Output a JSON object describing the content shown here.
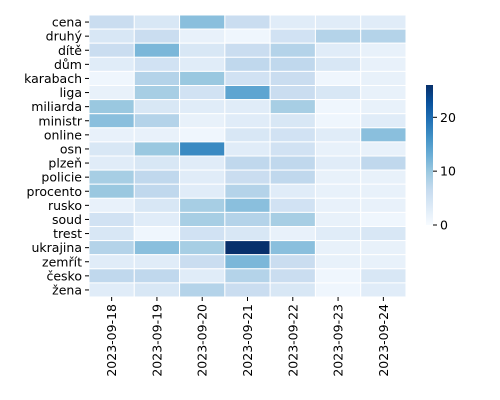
{
  "chart_data": {
    "type": "heatmap",
    "title": "",
    "xlabel": "",
    "ylabel": "",
    "x": [
      "2023-09-18",
      "2023-09-19",
      "2023-09-20",
      "2023-09-21",
      "2023-09-22",
      "2023-09-23",
      "2023-09-24"
    ],
    "y": [
      "cena",
      "druhý",
      "dítě",
      "dům",
      "karabach",
      "liga",
      "miliarda",
      "ministr",
      "online",
      "osn",
      "plzeň",
      "policie",
      "procento",
      "rusko",
      "soud",
      "trest",
      "ukrajina",
      "zemřít",
      "česko",
      "žena"
    ],
    "values": [
      [
        6,
        4,
        11,
        6,
        3,
        3,
        3
      ],
      [
        4,
        6,
        2,
        1,
        5,
        8,
        8
      ],
      [
        6,
        12,
        4,
        6,
        8,
        3,
        2
      ],
      [
        3,
        5,
        3,
        7,
        7,
        4,
        2
      ],
      [
        1,
        8,
        10,
        5,
        6,
        1,
        2
      ],
      [
        2,
        9,
        5,
        14,
        6,
        4,
        2
      ],
      [
        10,
        4,
        3,
        3,
        9,
        1,
        2
      ],
      [
        11,
        8,
        2,
        3,
        4,
        1,
        3
      ],
      [
        2,
        2,
        1,
        4,
        5,
        3,
        11
      ],
      [
        4,
        10,
        17,
        3,
        5,
        2,
        2
      ],
      [
        3,
        4,
        3,
        7,
        7,
        3,
        7
      ],
      [
        9,
        7,
        3,
        6,
        7,
        2,
        2
      ],
      [
        10,
        7,
        3,
        8,
        3,
        2,
        2
      ],
      [
        2,
        4,
        9,
        11,
        5,
        2,
        2
      ],
      [
        5,
        3,
        9,
        8,
        9,
        2,
        1
      ],
      [
        4,
        1,
        5,
        4,
        2,
        3,
        4
      ],
      [
        8,
        11,
        9,
        26,
        11,
        2,
        2
      ],
      [
        3,
        3,
        6,
        12,
        6,
        2,
        2
      ],
      [
        7,
        7,
        3,
        8,
        6,
        1,
        4
      ],
      [
        3,
        4,
        8,
        6,
        4,
        1,
        3
      ]
    ],
    "colormap": "Blues",
    "vmin": 0,
    "vmax": 26,
    "colorbar": {
      "ticks": [
        0,
        10,
        20
      ],
      "tick_labels": [
        "0",
        "10",
        "20"
      ],
      "position": "right"
    },
    "grid": false
  }
}
